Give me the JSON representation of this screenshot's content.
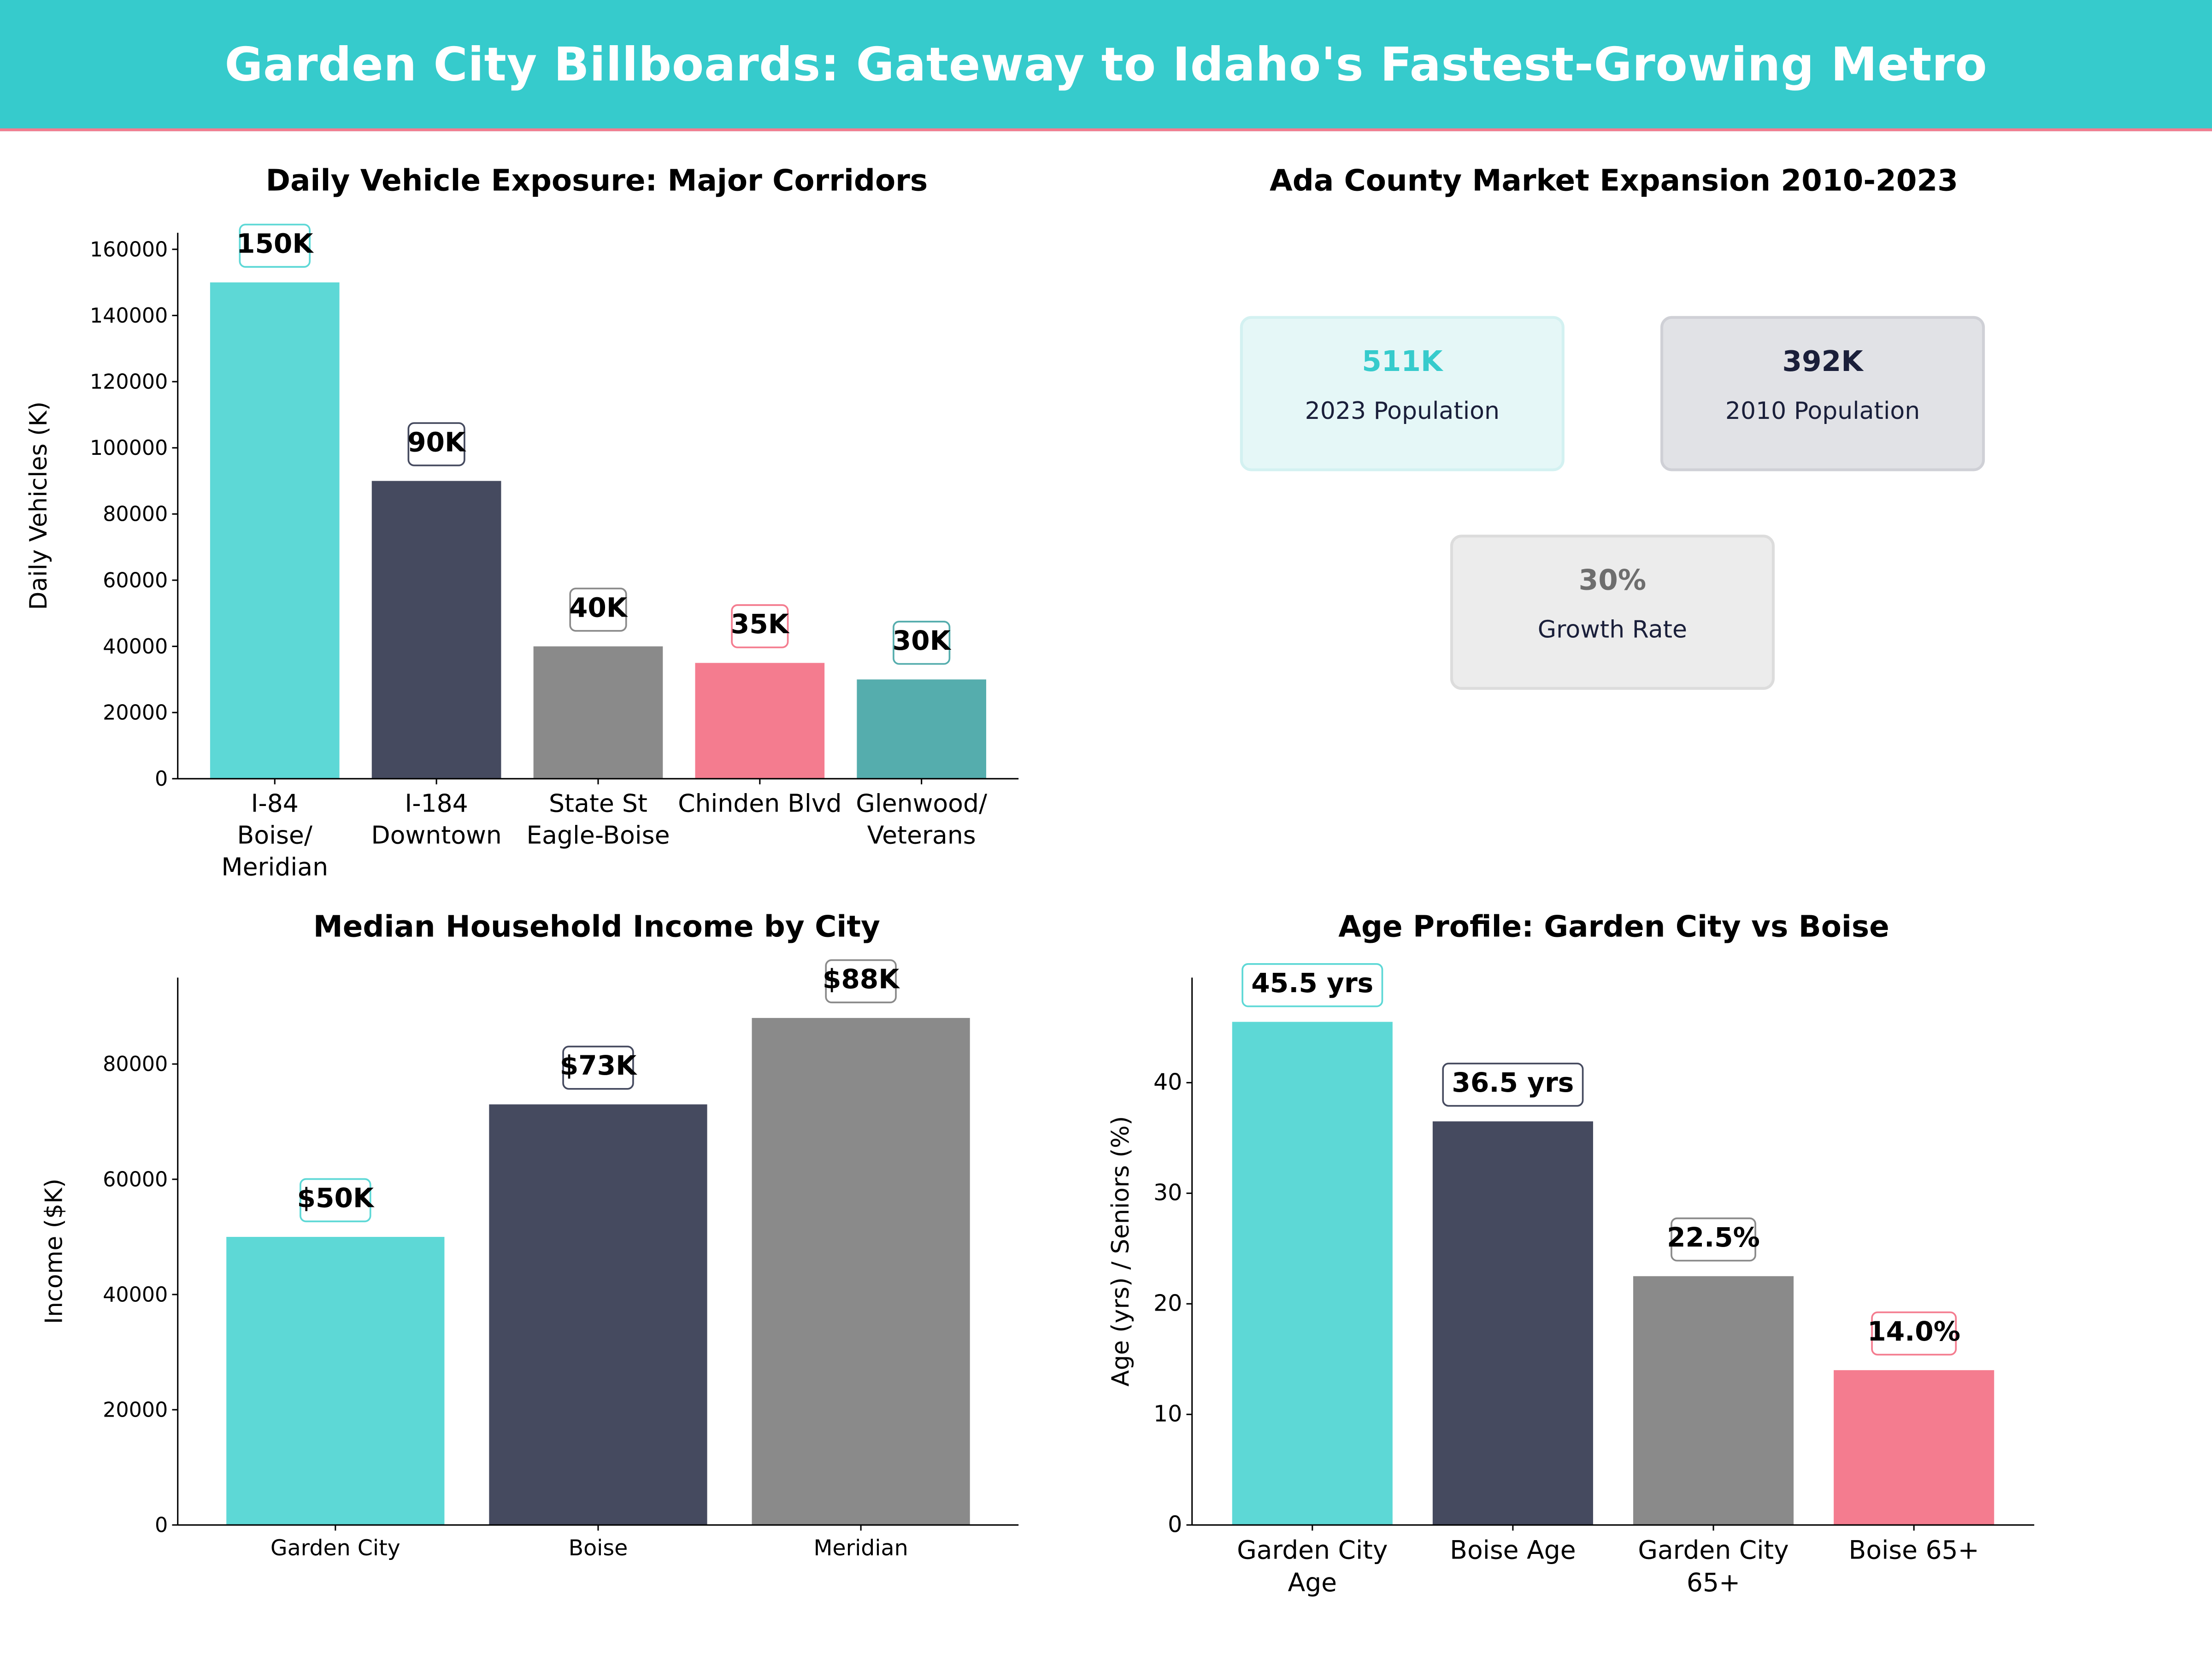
{
  "header": {
    "title": "Garden City Billboards: Gateway to Idaho's Fastest-Growing Metro",
    "color": "#36cbcc",
    "accent_line": "#f47c8f"
  },
  "market": {
    "title": "Ada County Market Expansion 2010-2023",
    "cards": [
      {
        "value": "511K",
        "label": "2023 Population",
        "value_color": "#36cbcc",
        "bg": "#e5f7f7",
        "border": "#d3f1f1"
      },
      {
        "value": "392K",
        "label": "2010 Population",
        "value_color": "#1a1f3a",
        "bg": "#e1e2e6",
        "border": "#cfd0d6"
      },
      {
        "value": "30%",
        "label": "Growth Rate",
        "value_color": "#6e6e6e",
        "bg": "#ececec",
        "border": "#dcdcdc"
      }
    ]
  },
  "chart_data": [
    {
      "type": "bar",
      "title": "Daily Vehicle Exposure: Major Corridors",
      "xlabel": "",
      "ylabel": "Daily Vehicles (K)",
      "categories": [
        "I-84\nBoise/\nMeridian",
        "I-184\nDowntown",
        "State St\nEagle-Boise",
        "Chinden Blvd",
        "Glenwood/\nVeterans"
      ],
      "values": [
        150000,
        90000,
        40000,
        35000,
        30000
      ],
      "data_labels": [
        "150K",
        "90K",
        "40K",
        "35K",
        "30K"
      ],
      "colors": [
        "#5dd8d6",
        "#454a5f",
        "#8a8a8a",
        "#f47c8f",
        "#55adad"
      ],
      "yticks": [
        0,
        20000,
        40000,
        60000,
        80000,
        100000,
        120000,
        140000,
        160000
      ],
      "ylim": [
        0,
        165000
      ],
      "grid": false
    },
    {
      "type": "bar",
      "title": "Median Household Income by City",
      "xlabel": "",
      "ylabel": "Income ($K)",
      "categories": [
        "Garden City",
        "Boise",
        "Meridian"
      ],
      "values": [
        50000,
        73000,
        88000
      ],
      "data_labels": [
        "$50K",
        "$73K",
        "$88K"
      ],
      "colors": [
        "#5dd8d6",
        "#454a5f",
        "#8a8a8a"
      ],
      "yticks": [
        0,
        20000,
        40000,
        60000,
        80000
      ],
      "ylim": [
        0,
        95000
      ],
      "grid": false
    },
    {
      "type": "bar",
      "title": "Age Profile: Garden City vs Boise",
      "xlabel": "",
      "ylabel": "Age (yrs) / Seniors (%)",
      "categories": [
        "Garden City\nAge",
        "Boise Age",
        "Garden City\n65+",
        "Boise 65+"
      ],
      "values": [
        45.5,
        36.5,
        22.5,
        14.0
      ],
      "data_labels": [
        "45.5  yrs",
        "36.5  yrs",
        "22.5%",
        "14.0%"
      ],
      "colors": [
        "#5dd8d6",
        "#454a5f",
        "#8a8a8a",
        "#f47c8f"
      ],
      "yticks": [
        0,
        10,
        20,
        30,
        40
      ],
      "ylim": [
        0,
        49.5
      ],
      "grid": false
    }
  ]
}
